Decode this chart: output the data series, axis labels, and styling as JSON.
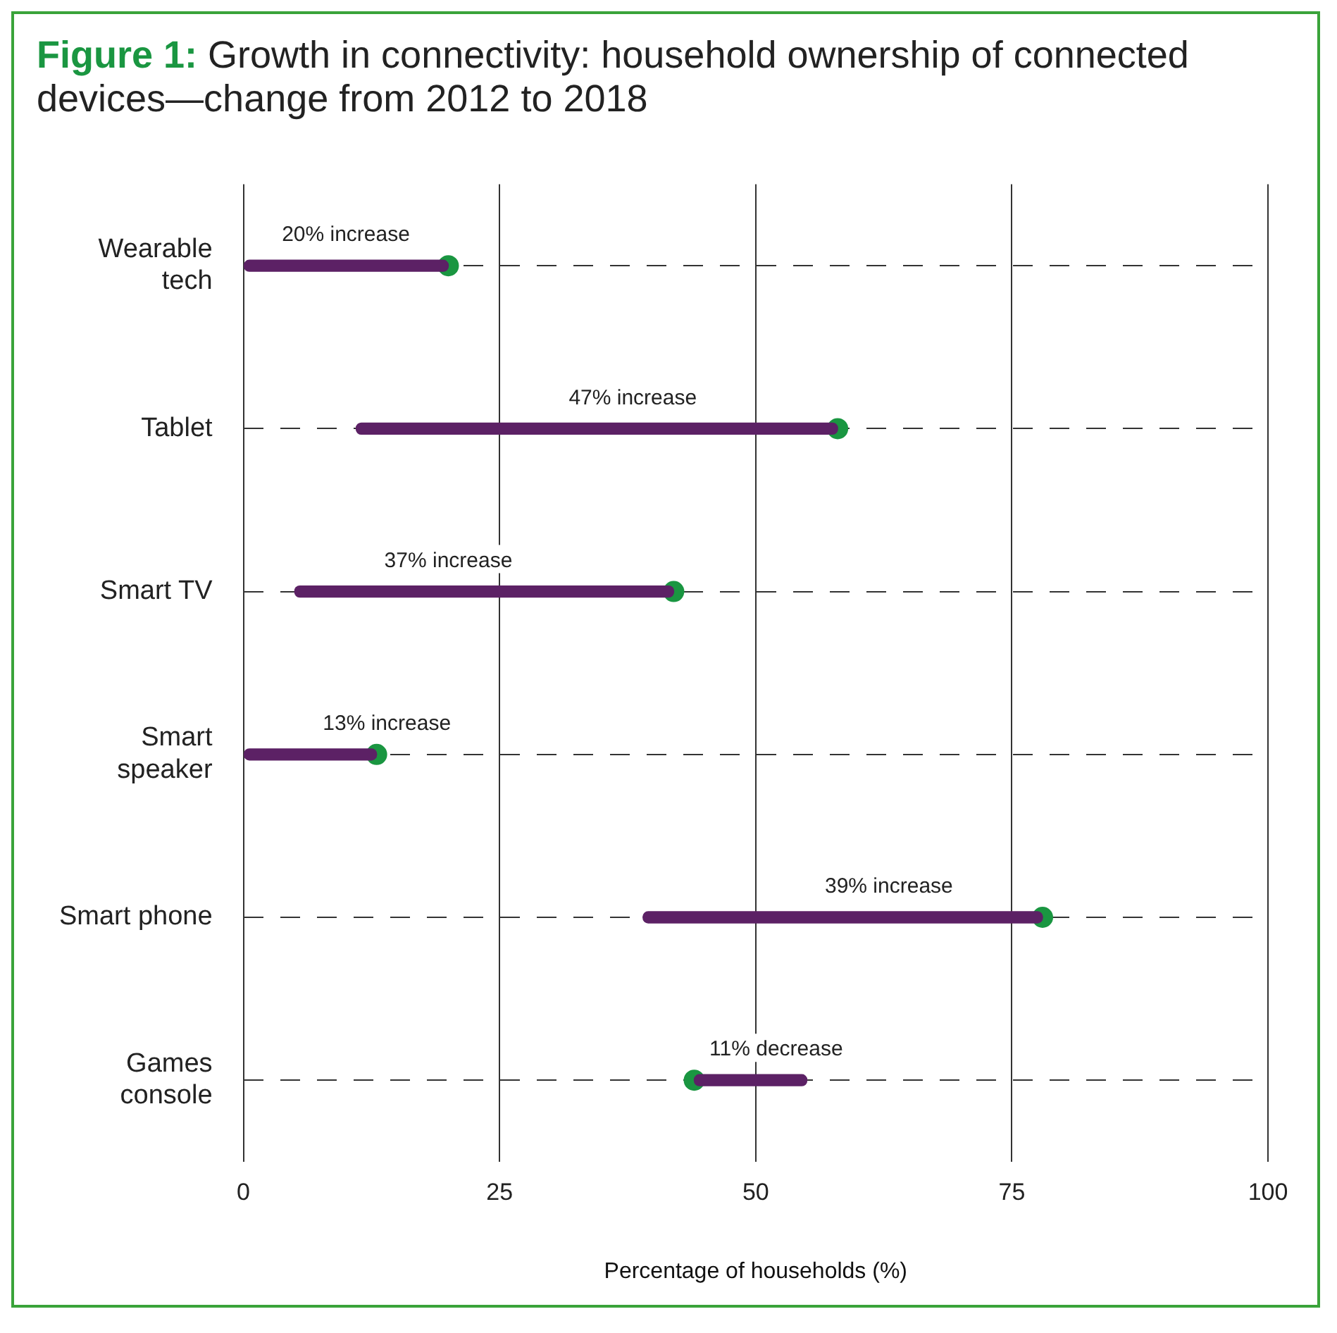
{
  "chart_data": {
    "type": "bar",
    "orientation": "horizontal",
    "title": "Figure 1: Growth in connectivity: household ownership of connected devices—change from 2012 to 2018",
    "xlabel": "Percentage of households (%)",
    "categories": [
      "Wearable tech",
      "Tablet",
      "Smart TV",
      "Smart speaker",
      "Smart phone",
      "Games console"
    ],
    "series": [
      {
        "color": "#5c2165",
        "base": [
          0,
          11,
          5,
          0,
          39,
          44
        ],
        "values": [
          20,
          47,
          37,
          13,
          39,
          11
        ]
      },
      {
        "type": "scatter",
        "color": "#1a9641",
        "x": [
          "Wearable tech",
          "Tablet",
          "Smart TV",
          "Smart speaker",
          "Smart phone",
          "Games console"
        ],
        "values": [
          20,
          58,
          42,
          13,
          78,
          44
        ]
      }
    ],
    "xlim": [
      0,
      100
    ],
    "xticks": [
      0,
      25,
      50,
      75,
      100
    ],
    "grid": true,
    "legend": false,
    "marker": "circle",
    "annotations": [
      {
        "text": "20% increase",
        "x": 10,
        "y": "Wearable tech"
      },
      {
        "text": "47% increase",
        "x": 38,
        "y": "Tablet"
      },
      {
        "text": "37% increase",
        "x": 20,
        "y": "Smart TV"
      },
      {
        "text": "13% increase",
        "x": 14,
        "y": "Smart speaker"
      },
      {
        "text": "39% increase",
        "x": 63,
        "y": "Smart phone"
      },
      {
        "text": "11% decrease",
        "x": 52,
        "y": "Games console"
      }
    ]
  }
}
